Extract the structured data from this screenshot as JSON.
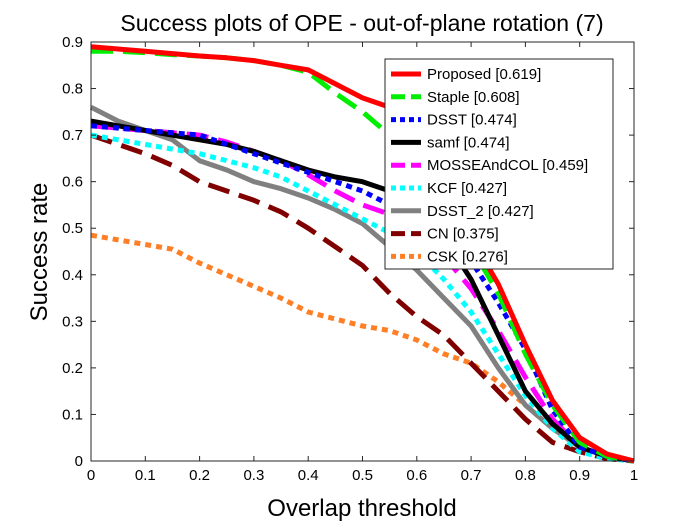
{
  "chart_data": {
    "type": "line",
    "title": "Success plots of OPE - out-of-plane rotation (7)",
    "xlabel": "Overlap threshold",
    "ylabel": "Success rate",
    "xlim": [
      0,
      1
    ],
    "ylim": [
      0,
      0.9
    ],
    "xticks": [
      "0",
      "0.1",
      "0.2",
      "0.3",
      "0.4",
      "0.5",
      "0.6",
      "0.7",
      "0.8",
      "0.9",
      "1"
    ],
    "yticks": [
      "0",
      "0.1",
      "0.2",
      "0.3",
      "0.4",
      "0.5",
      "0.6",
      "0.7",
      "0.8",
      "0.9"
    ],
    "grid": false,
    "legend_position": "top-right",
    "x": [
      0,
      0.05,
      0.1,
      0.15,
      0.2,
      0.25,
      0.3,
      0.35,
      0.4,
      0.45,
      0.5,
      0.55,
      0.6,
      0.65,
      0.7,
      0.75,
      0.8,
      0.85,
      0.9,
      0.95,
      1.0
    ],
    "series": [
      {
        "name": "Proposed [0.619]",
        "color": "#ff0000",
        "dash": "solid",
        "values": [
          0.89,
          0.885,
          0.88,
          0.875,
          0.87,
          0.866,
          0.86,
          0.85,
          0.84,
          0.81,
          0.78,
          0.76,
          0.66,
          0.57,
          0.48,
          0.38,
          0.25,
          0.13,
          0.05,
          0.015,
          0.0
        ]
      },
      {
        "name": "Staple [0.608]",
        "color": "#00ee00",
        "dash": "dashed",
        "values": [
          0.88,
          0.88,
          0.877,
          0.873,
          0.87,
          0.866,
          0.86,
          0.85,
          0.835,
          0.79,
          0.75,
          0.7,
          0.63,
          0.56,
          0.46,
          0.36,
          0.23,
          0.12,
          0.04,
          0.01,
          0.0
        ]
      },
      {
        "name": "DSST [0.474]",
        "color": "#0000ff",
        "dash": "dotted",
        "values": [
          0.72,
          0.715,
          0.71,
          0.705,
          0.7,
          0.68,
          0.66,
          0.64,
          0.62,
          0.6,
          0.58,
          0.55,
          0.52,
          0.48,
          0.43,
          0.34,
          0.24,
          0.11,
          0.03,
          0.01,
          0.0
        ]
      },
      {
        "name": "samf [0.474]",
        "color": "#000000",
        "dash": "solid",
        "values": [
          0.73,
          0.72,
          0.71,
          0.7,
          0.69,
          0.68,
          0.665,
          0.645,
          0.625,
          0.61,
          0.6,
          0.58,
          0.55,
          0.48,
          0.39,
          0.27,
          0.15,
          0.08,
          0.03,
          0.01,
          0.0
        ]
      },
      {
        "name": "MOSSEAndCOL [0.459]",
        "color": "#ff00ff",
        "dash": "dashed",
        "values": [
          0.72,
          0.715,
          0.71,
          0.705,
          0.7,
          0.685,
          0.665,
          0.645,
          0.615,
          0.58,
          0.55,
          0.53,
          0.5,
          0.44,
          0.37,
          0.28,
          0.18,
          0.09,
          0.03,
          0.01,
          0.0
        ]
      },
      {
        "name": "KCF [0.427]",
        "color": "#00ffff",
        "dash": "dotted",
        "values": [
          0.7,
          0.69,
          0.68,
          0.67,
          0.66,
          0.645,
          0.63,
          0.61,
          0.58,
          0.55,
          0.52,
          0.49,
          0.45,
          0.39,
          0.32,
          0.23,
          0.14,
          0.07,
          0.02,
          0.005,
          0.0
        ]
      },
      {
        "name": "DSST_2 [0.427]",
        "color": "#808080",
        "dash": "solid",
        "values": [
          0.76,
          0.73,
          0.71,
          0.69,
          0.645,
          0.625,
          0.6,
          0.585,
          0.565,
          0.54,
          0.51,
          0.46,
          0.41,
          0.35,
          0.29,
          0.2,
          0.12,
          0.07,
          0.03,
          0.01,
          0.0
        ]
      },
      {
        "name": "CN [0.375]",
        "color": "#800000",
        "dash": "dashed",
        "values": [
          0.7,
          0.68,
          0.66,
          0.635,
          0.6,
          0.58,
          0.56,
          0.535,
          0.5,
          0.46,
          0.42,
          0.36,
          0.31,
          0.27,
          0.21,
          0.15,
          0.09,
          0.04,
          0.02,
          0.005,
          0.0
        ]
      },
      {
        "name": "CSK [0.276]",
        "color": "#ff7f27",
        "dash": "dotted",
        "values": [
          0.485,
          0.475,
          0.465,
          0.455,
          0.425,
          0.4,
          0.375,
          0.35,
          0.32,
          0.305,
          0.29,
          0.28,
          0.26,
          0.23,
          0.21,
          0.17,
          0.12,
          0.07,
          0.03,
          0.01,
          0.0
        ]
      }
    ]
  }
}
